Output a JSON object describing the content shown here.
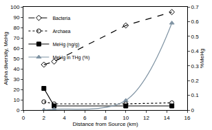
{
  "chart_data": {
    "type": "line",
    "x_label": "Distance from Source (km)",
    "y_label": "Alpha diversity, MeHg",
    "y2_label": "%MeHg",
    "x": [
      2,
      3,
      10,
      14.5
    ],
    "xlim": [
      0,
      16
    ],
    "xticks": [
      0,
      2,
      4,
      6,
      8,
      10,
      12,
      14,
      16
    ],
    "ylim": [
      0,
      100
    ],
    "yticks": [
      0,
      10,
      20,
      30,
      40,
      50,
      60,
      70,
      80,
      90,
      100
    ],
    "y2lim": [
      0,
      0.7
    ],
    "y2ticks": [
      0,
      0.1,
      0.2,
      0.3,
      0.4,
      0.5,
      0.6,
      0.7
    ],
    "legend": "upper left",
    "grid": false,
    "series": [
      {
        "name": "Bacteria",
        "color": "#000000",
        "values": [
          44,
          47,
          82,
          95
        ],
        "marker": "diamond-open",
        "line_style": "dash"
      },
      {
        "name": "Archaea",
        "color": "#000000",
        "values": [
          8,
          6,
          6,
          7
        ],
        "marker": "circle-open",
        "line_style": "dot"
      },
      {
        "name": "MeHg (ng/g)",
        "color": "#000000",
        "values": [
          21,
          4,
          4,
          4
        ],
        "marker": "square",
        "line_style": "solid"
      },
      {
        "name": "MeHg in THg (%)",
        "color": "#7f93a3",
        "values": [
          0,
          0.005,
          0.065,
          0.59
        ],
        "marker": "triangle-up",
        "line_style": "solid",
        "axis": "y2"
      }
    ]
  }
}
